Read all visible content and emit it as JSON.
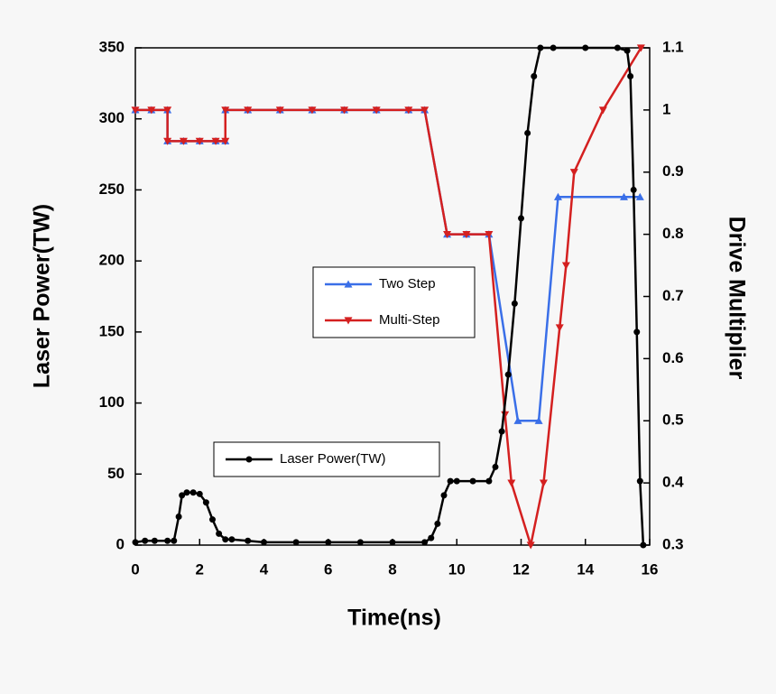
{
  "chart_data": {
    "type": "line",
    "x_label": "Time(ns)",
    "y_label": "Laser Power(TW)",
    "y2_label": "Drive Multiplier",
    "xlim": [
      0,
      16
    ],
    "xticks": [
      0,
      2,
      4,
      6,
      8,
      10,
      12,
      14,
      16
    ],
    "ylim": [
      0,
      350
    ],
    "yticks": [
      0,
      50,
      100,
      150,
      200,
      250,
      300,
      350
    ],
    "y2lim": [
      0.3,
      1.1
    ],
    "y2ticks": [
      0.3,
      0.4,
      0.5,
      0.6,
      0.7,
      0.8,
      0.9,
      1,
      1.1
    ],
    "series": [
      {
        "name": "Two Step",
        "color": "#3a6fe8",
        "marker": "triangle-up",
        "axis": "y2",
        "x": [
          0,
          0.5,
          1,
          1,
          1.5,
          2,
          2.5,
          2.8,
          2.8,
          3.5,
          4.5,
          5.5,
          6.5,
          7.5,
          8.5,
          9,
          9.7,
          10.3,
          11,
          11.9,
          12.55,
          13.15,
          15.2,
          15.7
        ],
        "values": [
          1,
          1,
          1,
          0.95,
          0.95,
          0.95,
          0.95,
          0.95,
          1,
          1,
          1,
          1,
          1,
          1,
          1,
          1,
          0.8,
          0.8,
          0.8,
          0.5,
          0.5,
          0.86,
          0.86,
          0.86
        ]
      },
      {
        "name": "Multi-Step",
        "color": "#d42020",
        "marker": "triangle-down",
        "axis": "y2",
        "x": [
          0,
          0.5,
          1,
          1,
          1.5,
          2,
          2.5,
          2.8,
          2.8,
          3.5,
          4.5,
          5.5,
          6.5,
          7.5,
          8.5,
          9,
          9.7,
          10.3,
          11,
          11.5,
          11.7,
          12.3,
          12.7,
          13.2,
          13.4,
          13.65,
          14.55,
          15.73
        ],
        "values": [
          1,
          1,
          1,
          0.95,
          0.95,
          0.95,
          0.95,
          0.95,
          1,
          1,
          1,
          1,
          1,
          1,
          1,
          1,
          0.8,
          0.8,
          0.8,
          0.51,
          0.4,
          0.3,
          0.4,
          0.65,
          0.75,
          0.9,
          1,
          1.1
        ]
      },
      {
        "name": "Laser Power(TW)",
        "color": "#000000",
        "marker": "circle",
        "axis": "y",
        "x": [
          0,
          0.3,
          0.6,
          1,
          1.2,
          1.35,
          1.45,
          1.6,
          1.8,
          2,
          2.2,
          2.4,
          2.6,
          2.8,
          3,
          3.5,
          4,
          5,
          6,
          7,
          8,
          9,
          9.2,
          9.4,
          9.6,
          9.8,
          10,
          10.5,
          11,
          11.2,
          11.4,
          11.6,
          11.8,
          12,
          12.2,
          12.4,
          12.6,
          13,
          14,
          15,
          15.3,
          15.4,
          15.5,
          15.6,
          15.7,
          15.8
        ],
        "values": [
          2,
          3,
          3,
          3,
          3,
          20,
          35,
          37,
          37,
          36,
          30,
          18,
          8,
          4,
          4,
          3,
          2,
          2,
          2,
          2,
          2,
          2,
          5,
          15,
          35,
          45,
          45,
          45,
          45,
          55,
          80,
          120,
          170,
          230,
          290,
          330,
          350,
          350,
          350,
          350,
          348,
          330,
          250,
          150,
          45,
          0
        ]
      }
    ]
  }
}
